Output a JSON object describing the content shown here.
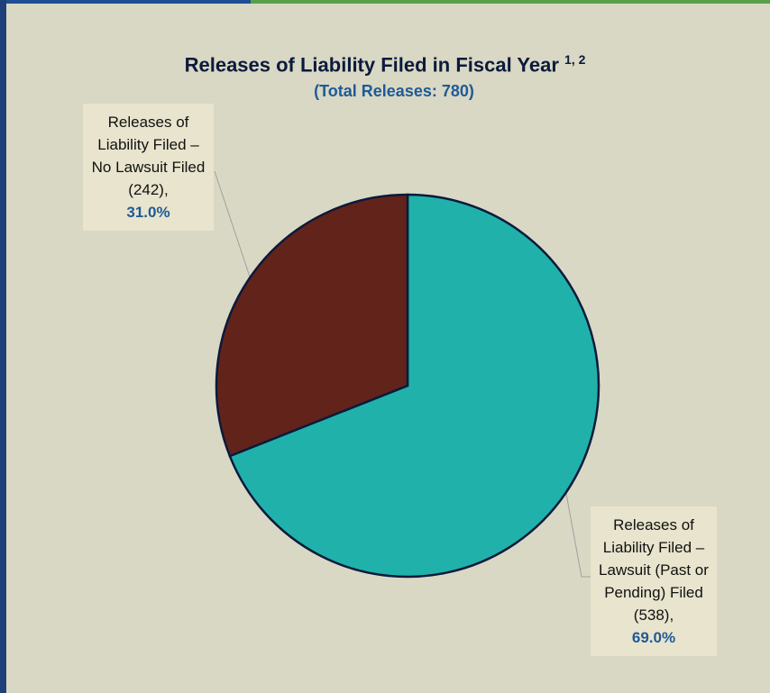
{
  "chart_data": {
    "type": "pie",
    "title": "Releases of Liability Filed in Fiscal Year",
    "title_superscript": "1, 2",
    "subtitle": "(Total Releases: 780)",
    "categories": [
      "Releases of Liability Filed – Lawsuit (Past or Pending) Filed (538),",
      "Releases of Liability Filed – No Lawsuit Filed (242),"
    ],
    "values": [
      69.0,
      31.0
    ],
    "value_labels": [
      "69.0%",
      "31.0%"
    ],
    "colors": [
      "#20b2aa",
      "#62231a"
    ],
    "start_angle": 0,
    "direction": "clockwise"
  }
}
